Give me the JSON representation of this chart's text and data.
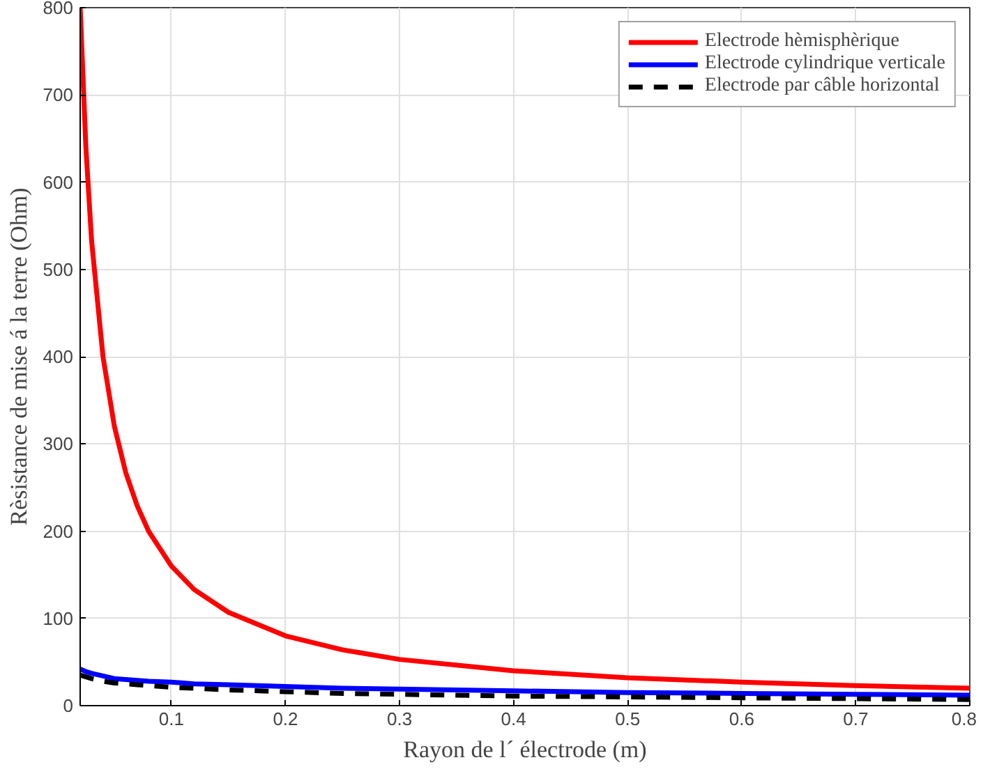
{
  "chart_data": {
    "type": "line",
    "xlabel": "Rayon de l´ électrode (m)",
    "ylabel": "Rèsistance de mise á la terre (Ohm)",
    "xlim": [
      0.02,
      0.8
    ],
    "ylim": [
      0,
      800
    ],
    "xticks": [
      0.1,
      0.2,
      0.3,
      0.4,
      0.5,
      0.6,
      0.7,
      0.8
    ],
    "yticks": [
      0,
      100,
      200,
      300,
      400,
      500,
      600,
      700,
      800
    ],
    "grid": true,
    "legend": "top right",
    "x": [
      0.02,
      0.025,
      0.03,
      0.04,
      0.05,
      0.06,
      0.07,
      0.08,
      0.1,
      0.12,
      0.15,
      0.2,
      0.25,
      0.3,
      0.4,
      0.5,
      0.6,
      0.7,
      0.8
    ],
    "series": [
      {
        "name": "Electrode hèmisphèrique",
        "color": "#ff0000",
        "line_style": "solid",
        "values": [
          800,
          640,
          533,
          400,
          320,
          267,
          229,
          200,
          160,
          133,
          107,
          80,
          64,
          53,
          40,
          32,
          27,
          23,
          20
        ]
      },
      {
        "name": "Electrode cylindrique verticale",
        "color": "#0000ff",
        "line_style": "solid",
        "values": [
          42,
          39,
          37,
          34,
          31,
          30,
          29,
          28,
          27,
          25,
          24,
          22,
          20,
          19,
          17,
          15,
          14,
          13,
          12
        ]
      },
      {
        "name": "Electrode par câble horizontal",
        "color": "#000000",
        "line_style": "dashed",
        "values": [
          35,
          33,
          31,
          28,
          26,
          25,
          24,
          23,
          21,
          20,
          18,
          16,
          14,
          13,
          11,
          10,
          9,
          8,
          7
        ]
      }
    ]
  }
}
